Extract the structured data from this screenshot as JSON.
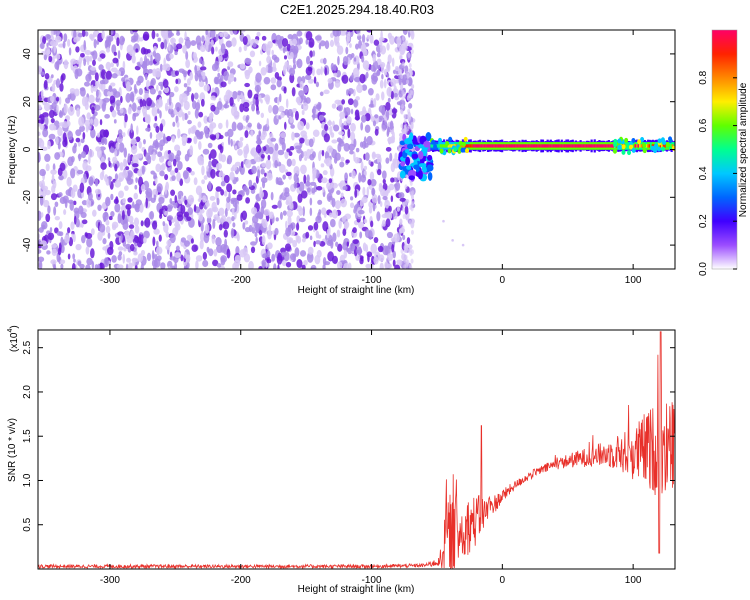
{
  "title": "C2E1.2025.294.18.40.R03",
  "colors": {
    "specklePale": "#d8c8f6",
    "speckleMid": "#a98ae8",
    "speckleDark": "#6a1bd8",
    "snrLine": "#e8302a",
    "axis": "#000000"
  },
  "chart_data": [
    {
      "type": "heatmap",
      "name": "spectrogram",
      "xlabel": "Height of straight line (km)",
      "ylabel": "Frequency (Hz)",
      "xlim": [
        -355,
        132
      ],
      "ylim": [
        -50,
        50
      ],
      "xticks": [
        -300,
        -200,
        -100,
        0,
        100
      ],
      "yticks": [
        -40,
        -20,
        0,
        20,
        40
      ],
      "colorbar": {
        "label": "Normalized spectral amplitude",
        "range": [
          0,
          1
        ],
        "ticks": [
          "0.0",
          "0.2",
          "0.4",
          "0.6",
          "0.8"
        ],
        "tickValues": [
          0,
          0.2,
          0.4,
          0.6,
          0.8
        ],
        "colormap": [
          "#ffffff",
          "#9b4dff",
          "#3f00ff",
          "#0066ff",
          "#00c8ff",
          "#00ff90",
          "#60ff00",
          "#ffee00",
          "#ff8800",
          "#ff2200",
          "#ff0066"
        ]
      },
      "regions": [
        {
          "kind": "noise",
          "x": [
            -355,
            -72
          ],
          "freq": [
            -50,
            50
          ],
          "amplitude": [
            0.0,
            0.15
          ]
        },
        {
          "kind": "transition",
          "x": [
            -78,
            -55
          ],
          "freq": [
            -12,
            6
          ],
          "amplitude": [
            0.1,
            0.45
          ]
        },
        {
          "kind": "signal",
          "x": [
            -55,
            132
          ],
          "freq": [
            -1,
            4
          ],
          "centerFreq": 1.5,
          "peakAmplitude": 1.0
        }
      ]
    },
    {
      "type": "line",
      "name": "snr",
      "xlabel": "Height of straight line (km)",
      "ylabel": "SNR (10 * v/v)",
      "multiplier": "(x10^4)",
      "multiplierBase": "(x10",
      "multiplierExp": "4",
      "multiplierEnd": ")",
      "xlim": [
        -355,
        132
      ],
      "ylim": [
        0,
        2.7
      ],
      "xticks": [
        -300,
        -200,
        -100,
        0,
        100
      ],
      "yticks": [
        0.5,
        1.0,
        1.5,
        2.0,
        2.5
      ],
      "ytickLabels": [
        "0.5",
        "1.0",
        "1.5",
        "2.0",
        "2.5"
      ],
      "series": [
        {
          "name": "SNR",
          "x": [
            -355,
            -300,
            -250,
            -200,
            -150,
            -100,
            -60,
            -48,
            -44,
            -40,
            -35,
            -30,
            -25,
            -20,
            -15,
            -10,
            -5,
            0,
            10,
            20,
            30,
            40,
            50,
            60,
            70,
            80,
            90,
            100,
            110,
            120,
            132
          ],
          "y": [
            0.03,
            0.03,
            0.03,
            0.03,
            0.03,
            0.03,
            0.04,
            0.08,
            0.35,
            0.4,
            0.38,
            0.45,
            0.5,
            0.55,
            0.62,
            0.68,
            0.75,
            0.82,
            0.95,
            1.05,
            1.12,
            1.18,
            1.22,
            1.25,
            1.28,
            1.3,
            1.32,
            1.3,
            1.35,
            1.35,
            1.4
          ],
          "noiseAmplitude": [
            0.02,
            0.02,
            0.02,
            0.02,
            0.02,
            0.02,
            0.02,
            0.05,
            0.4,
            0.45,
            0.4,
            0.35,
            0.32,
            0.3,
            0.2,
            0.15,
            0.1,
            0.08,
            0.05,
            0.05,
            0.05,
            0.06,
            0.08,
            0.1,
            0.12,
            0.15,
            0.22,
            0.3,
            0.45,
            0.55,
            0.55
          ]
        }
      ]
    }
  ]
}
